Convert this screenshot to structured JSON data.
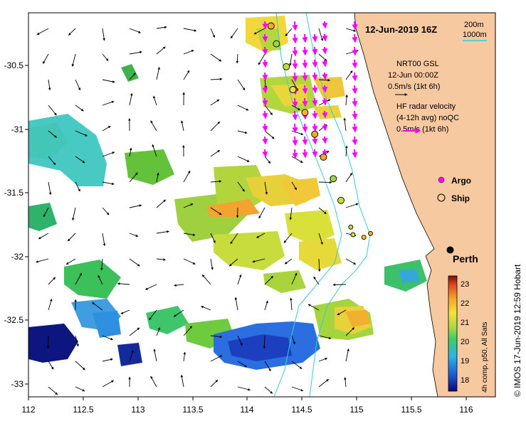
{
  "title": "12-Jun-2019 16Z",
  "credit": "© IMOS 17-Jun-2019 12:59 Hobart",
  "depth_legend": {
    "shallow": "200m",
    "deep": "1000m"
  },
  "nrt_legend": {
    "line1": "NRT00 GSL",
    "line2": "12-Jun 00:00Z",
    "line3": "0.5m/s (1kt 6h)"
  },
  "hf_legend": {
    "line1": "HF radar velocity",
    "line2": "(4-12h avg) noQC",
    "line3": "0.5m/s (1kt 6h)"
  },
  "symbol_legend": {
    "argo": "Argo",
    "ship": "Ship"
  },
  "place": {
    "name": "Perth",
    "lon": 115.86,
    "lat": -31.95
  },
  "colorbar": {
    "label": "4h comp, p50, All Sats",
    "ticks": [
      "23",
      "22",
      "21",
      "20",
      "19",
      "18"
    ],
    "min": 17.5,
    "max": 23.5
  },
  "axes": {
    "x_ticks": [
      "112",
      "112.5",
      "113",
      "113.5",
      "114",
      "114.5",
      "115",
      "115.5",
      "116"
    ],
    "y_ticks": [
      "-30.5",
      "-31",
      "-31.5",
      "-32",
      "-32.5",
      "-33"
    ]
  },
  "colors": {
    "land": "#f7c9a0",
    "hf_arrows": "#ff00ff",
    "isobath": "#33ccdd",
    "nrt_arrows": "#000000"
  },
  "ship_stations": [
    {
      "lon": 114.22,
      "lat": -30.19,
      "sst": 22.3
    },
    {
      "lon": 114.27,
      "lat": -30.33,
      "sst": 20.7
    },
    {
      "lon": 114.36,
      "lat": -30.51,
      "sst": 21.1
    },
    {
      "lon": 114.42,
      "lat": -30.69,
      "sst": 21.6
    },
    {
      "lon": 114.53,
      "lat": -30.87,
      "sst": 22.2
    },
    {
      "lon": 114.62,
      "lat": -31.04,
      "sst": 22.3
    },
    {
      "lon": 114.7,
      "lat": -31.22,
      "sst": 22.3
    },
    {
      "lon": 114.79,
      "lat": -31.39,
      "sst": 20.7
    },
    {
      "lon": 114.86,
      "lat": -31.56,
      "sst": 21.1
    },
    {
      "lon": 114.95,
      "lat": -31.77,
      "sst": 21.0
    },
    {
      "lon": 114.97,
      "lat": -31.83,
      "sst": 21.1
    },
    {
      "lon": 115.07,
      "lat": -31.85,
      "sst": 22.0
    },
    {
      "lon": 115.13,
      "lat": -31.82,
      "sst": 22.2
    }
  ]
}
